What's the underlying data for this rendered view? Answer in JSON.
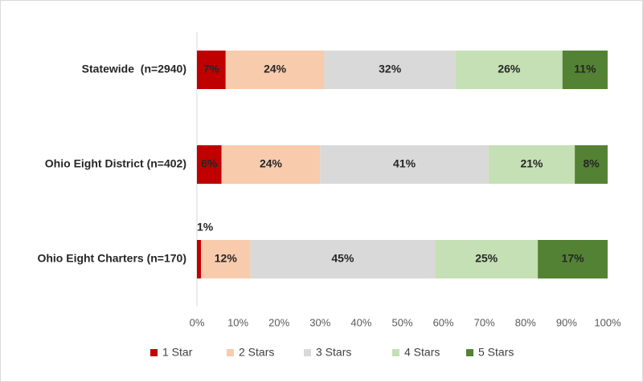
{
  "chart_data": {
    "type": "stacked-bar-horizontal",
    "categories": [
      "Statewide  (n=2940)",
      "Ohio Eight District (n=402)",
      "Ohio Eight Charters (n=170)"
    ],
    "series": [
      {
        "name": "1 Star",
        "color": "#c00000",
        "values": [
          7,
          6,
          1
        ],
        "value_labels": [
          "7%",
          "6%",
          "1%"
        ]
      },
      {
        "name": "2 Stars",
        "color": "#f8cbad",
        "values": [
          24,
          24,
          12
        ],
        "value_labels": [
          "24%",
          "24%",
          "12%"
        ]
      },
      {
        "name": "3 Stars",
        "color": "#d9d9d9",
        "values": [
          32,
          41,
          45
        ],
        "value_labels": [
          "32%",
          "41%",
          "45%"
        ]
      },
      {
        "name": "4 Stars",
        "color": "#c5e0b4",
        "values": [
          26,
          21,
          25
        ],
        "value_labels": [
          "26%",
          "21%",
          "25%"
        ]
      },
      {
        "name": "5 Stars",
        "color": "#548235",
        "values": [
          11,
          8,
          17
        ],
        "value_labels": [
          "11%",
          "8%",
          "17%"
        ]
      }
    ],
    "xlim": [
      0,
      100
    ],
    "xticks": [
      {
        "value": 0,
        "label": "0%"
      },
      {
        "value": 10,
        "label": "10%"
      },
      {
        "value": 20,
        "label": "20%"
      },
      {
        "value": 30,
        "label": "30%"
      },
      {
        "value": 40,
        "label": "40%"
      },
      {
        "value": 50,
        "label": "50%"
      },
      {
        "value": 60,
        "label": "60%"
      },
      {
        "value": 70,
        "label": "70%"
      },
      {
        "value": 80,
        "label": "80%"
      },
      {
        "value": 90,
        "label": "90%"
      },
      {
        "value": 100,
        "label": "100%"
      }
    ],
    "legend": "bottom"
  }
}
